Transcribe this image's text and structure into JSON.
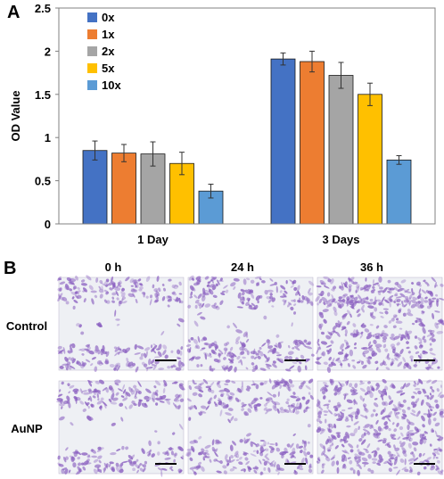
{
  "panel_a_label": "A",
  "panel_b_label": "B",
  "chart_data": {
    "type": "bar",
    "ylabel": "OD Value",
    "xlabel": "",
    "ylim": [
      0,
      2.5
    ],
    "yticks": [
      0,
      0.5,
      1,
      1.5,
      2,
      2.5
    ],
    "ytick_labels": [
      "0",
      "0.5",
      "1",
      "1.5",
      "2",
      "2.5"
    ],
    "categories": [
      "1 Day",
      "3 Days"
    ],
    "legend_position": "top-left",
    "grid": false,
    "error_bars": true,
    "series": [
      {
        "name": "0x",
        "color": "#4472C4",
        "values": [
          0.85,
          1.91
        ],
        "errors": [
          0.11,
          0.07
        ]
      },
      {
        "name": "1x",
        "color": "#ED7D31",
        "values": [
          0.82,
          1.88
        ],
        "errors": [
          0.1,
          0.12
        ]
      },
      {
        "name": "2x",
        "color": "#A5A5A5",
        "values": [
          0.81,
          1.72
        ],
        "errors": [
          0.14,
          0.15
        ]
      },
      {
        "name": "5x",
        "color": "#FFC000",
        "values": [
          0.7,
          1.5
        ],
        "errors": [
          0.13,
          0.13
        ]
      },
      {
        "name": "10x",
        "color": "#5B9BD5",
        "values": [
          0.38,
          0.74
        ],
        "errors": [
          0.08,
          0.05
        ]
      }
    ]
  },
  "micrographs": {
    "columns": [
      "0 h",
      "24 h",
      "36 h"
    ],
    "rows": [
      "Control",
      "AuNP"
    ],
    "stain_color": "#8a5fc0",
    "background_color": "#eef0f4"
  }
}
